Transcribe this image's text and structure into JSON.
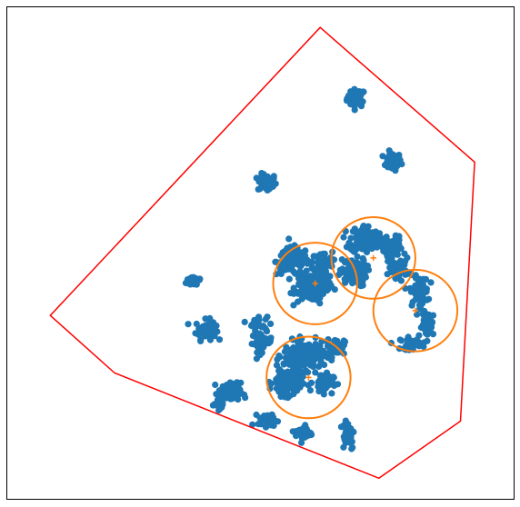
{
  "chart_data": {
    "type": "scatter",
    "title": "",
    "xlabel": "",
    "ylabel": "",
    "xlim": [
      0,
      100
    ],
    "ylim": [
      0,
      100
    ],
    "grid": false,
    "axes_visible": false,
    "colors": {
      "points": "#1f77b4",
      "hull": "#ff0000",
      "circles": "#ff7f0e",
      "centers": "#ff7f0e",
      "frame": "#000000"
    },
    "hull": [
      [
        61.8,
        95.9
      ],
      [
        92.3,
        68.5
      ],
      [
        89.5,
        15.8
      ],
      [
        73.4,
        4.2
      ],
      [
        21.2,
        25.6
      ],
      [
        8.5,
        37.3
      ]
    ],
    "circles": [
      {
        "x": 60.8,
        "y": 43.8,
        "r": 8.3
      },
      {
        "x": 72.3,
        "y": 49.0,
        "r": 8.3
      },
      {
        "x": 80.6,
        "y": 38.3,
        "r": 8.3
      },
      {
        "x": 59.5,
        "y": 24.7,
        "r": 8.3
      }
    ],
    "clusters": [
      {
        "x": 68.9,
        "y": 81.5,
        "sx": 0.9,
        "sy": 0.9,
        "n": 45
      },
      {
        "x": 76.0,
        "y": 68.6,
        "sx": 0.9,
        "sy": 0.9,
        "n": 45
      },
      {
        "x": 51.3,
        "y": 64.3,
        "sx": 0.9,
        "sy": 0.9,
        "n": 45
      },
      {
        "x": 37.0,
        "y": 44.4,
        "sx": 0.8,
        "sy": 0.6,
        "n": 30
      },
      {
        "x": 39.2,
        "y": 34.4,
        "sx": 1.0,
        "sy": 1.0,
        "n": 55
      },
      {
        "x": 49.5,
        "y": 35.8,
        "sx": 0.9,
        "sy": 0.7,
        "n": 25
      },
      {
        "x": 50.3,
        "y": 31.9,
        "sx": 1.0,
        "sy": 1.0,
        "n": 45
      },
      {
        "x": 56.3,
        "y": 48.3,
        "sx": 1.6,
        "sy": 1.4,
        "n": 110
      },
      {
        "x": 59.7,
        "y": 43.2,
        "sx": 1.4,
        "sy": 1.5,
        "n": 100
      },
      {
        "x": 62.3,
        "y": 44.6,
        "sx": 1.0,
        "sy": 1.2,
        "n": 60
      },
      {
        "x": 62.2,
        "y": 48.2,
        "sx": 1.0,
        "sy": 1.0,
        "n": 55
      },
      {
        "x": 70.5,
        "y": 52.9,
        "sx": 1.4,
        "sy": 1.4,
        "n": 110
      },
      {
        "x": 68.3,
        "y": 46.0,
        "sx": 1.3,
        "sy": 1.4,
        "n": 100
      },
      {
        "x": 75.7,
        "y": 51.0,
        "sx": 1.2,
        "sy": 1.2,
        "n": 70
      },
      {
        "x": 77.3,
        "y": 47.0,
        "sx": 1.0,
        "sy": 1.0,
        "n": 55
      },
      {
        "x": 81.3,
        "y": 42.2,
        "sx": 0.9,
        "sy": 1.5,
        "n": 75
      },
      {
        "x": 83.3,
        "y": 35.5,
        "sx": 0.7,
        "sy": 1.3,
        "n": 50
      },
      {
        "x": 79.6,
        "y": 31.6,
        "sx": 1.0,
        "sy": 0.6,
        "n": 35
      },
      {
        "x": 58.6,
        "y": 29.2,
        "sx": 2.0,
        "sy": 1.4,
        "n": 170
      },
      {
        "x": 55.3,
        "y": 23.7,
        "sx": 1.4,
        "sy": 1.4,
        "n": 130
      },
      {
        "x": 64.8,
        "y": 31.0,
        "sx": 0.9,
        "sy": 0.8,
        "n": 50
      },
      {
        "x": 62.4,
        "y": 23.6,
        "sx": 1.0,
        "sy": 1.0,
        "n": 60
      },
      {
        "x": 43.9,
        "y": 21.6,
        "sx": 1.1,
        "sy": 1.0,
        "n": 80
      },
      {
        "x": 42.1,
        "y": 19.1,
        "sx": 0.6,
        "sy": 0.5,
        "n": 20
      },
      {
        "x": 51.4,
        "y": 16.0,
        "sx": 0.9,
        "sy": 0.6,
        "n": 40
      },
      {
        "x": 58.5,
        "y": 13.3,
        "sx": 0.8,
        "sy": 0.8,
        "n": 35
      },
      {
        "x": 67.2,
        "y": 13.2,
        "sx": 0.7,
        "sy": 1.6,
        "n": 50
      }
    ]
  }
}
